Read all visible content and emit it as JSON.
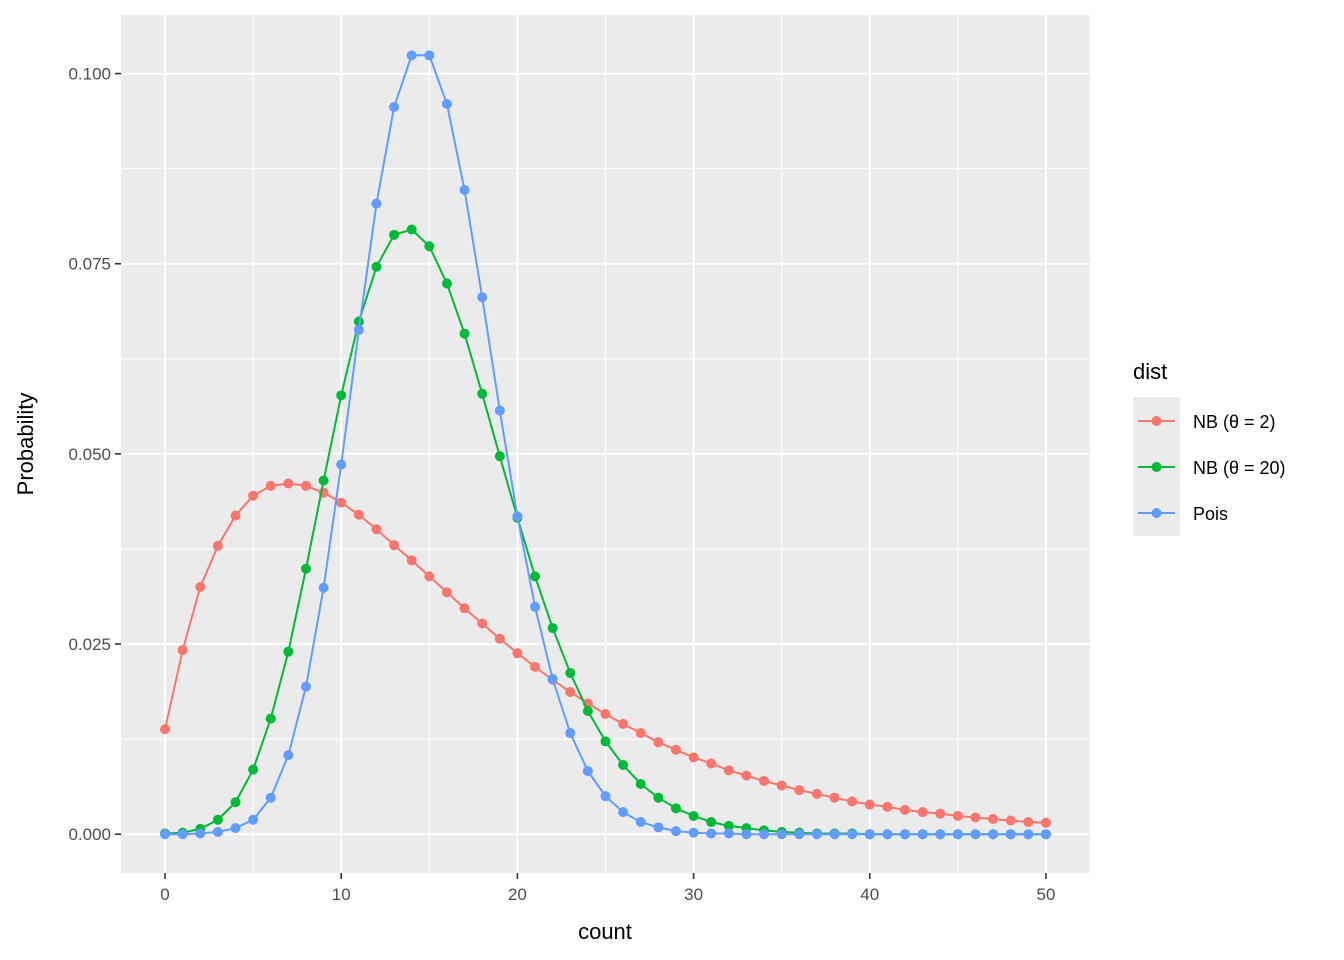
{
  "chart_data": {
    "type": "line",
    "xlabel": "count",
    "ylabel": "Probability",
    "xlim": [
      -2.5,
      52.5
    ],
    "ylim": [
      -0.0051,
      0.1077
    ],
    "x_ticks": [
      0,
      10,
      20,
      30,
      40,
      50
    ],
    "x_tick_labels": [
      "0",
      "10",
      "20",
      "30",
      "40",
      "50"
    ],
    "y_ticks": [
      0,
      0.025,
      0.05,
      0.075,
      0.1
    ],
    "y_tick_labels": [
      "0.000",
      "0.025",
      "0.050",
      "0.075",
      "0.100"
    ],
    "grid": true,
    "background_color": "#ebebeb",
    "grid_color": "#ffffff",
    "legend": {
      "title": "dist",
      "placement": "right",
      "entries": [
        "NB (θ = 2)",
        "NB (θ = 20)",
        "Pois"
      ]
    },
    "x": [
      0,
      1,
      2,
      3,
      4,
      5,
      6,
      7,
      8,
      9,
      10,
      11,
      12,
      13,
      14,
      15,
      16,
      17,
      18,
      19,
      20,
      21,
      22,
      23,
      24,
      25,
      26,
      27,
      28,
      29,
      30,
      31,
      32,
      33,
      34,
      35,
      36,
      37,
      38,
      39,
      40,
      41,
      42,
      43,
      44,
      45,
      46,
      47,
      48,
      49,
      50
    ],
    "series": [
      {
        "name": "NB (θ = 2)",
        "color": "#f8766d",
        "values": [
          0.0138,
          0.0242,
          0.0325,
          0.0379,
          0.0419,
          0.0445,
          0.0458,
          0.0461,
          0.0458,
          0.0449,
          0.0436,
          0.042,
          0.0401,
          0.038,
          0.036,
          0.0339,
          0.0318,
          0.0297,
          0.0277,
          0.0257,
          0.0238,
          0.022,
          0.0203,
          0.0187,
          0.0172,
          0.0158,
          0.0145,
          0.0133,
          0.0121,
          0.0111,
          0.0101,
          0.0093,
          0.0084,
          0.0077,
          0.007,
          0.0064,
          0.0058,
          0.0053,
          0.0048,
          0.0043,
          0.0039,
          0.0036,
          0.0032,
          0.0029,
          0.0027,
          0.0024,
          0.0022,
          0.002,
          0.0018,
          0.0016,
          0.0015
        ]
      },
      {
        "name": "NB (θ = 20)",
        "color": "#00ba38",
        "values": [
          0.0001,
          0.0002,
          0.0007,
          0.0019,
          0.0042,
          0.0085,
          0.0152,
          0.024,
          0.0349,
          0.0465,
          0.0577,
          0.0674,
          0.0746,
          0.0788,
          0.0795,
          0.0773,
          0.0724,
          0.0658,
          0.0579,
          0.0497,
          0.0416,
          0.0339,
          0.0271,
          0.0212,
          0.0162,
          0.0122,
          0.0091,
          0.0066,
          0.0048,
          0.0034,
          0.0024,
          0.0016,
          0.0011,
          0.0008,
          0.0005,
          0.0003,
          0.0002,
          0.0001,
          0.0001,
          0.0001,
          0.0,
          0.0,
          0.0,
          0.0,
          0.0,
          0.0,
          0.0,
          0.0,
          0.0,
          0.0,
          0.0
        ]
      },
      {
        "name": "Pois",
        "color": "#619cff",
        "values": [
          0.0,
          0.0,
          0.0001,
          0.0003,
          0.0008,
          0.0019,
          0.0048,
          0.0104,
          0.0194,
          0.0324,
          0.0486,
          0.0663,
          0.0829,
          0.0956,
          0.1024,
          0.1024,
          0.096,
          0.0847,
          0.0706,
          0.0557,
          0.0418,
          0.0299,
          0.0204,
          0.0133,
          0.0083,
          0.005,
          0.0029,
          0.0016,
          0.0009,
          0.0004,
          0.0002,
          0.0001,
          0.0001,
          0.0,
          0.0,
          0.0,
          0.0,
          0.0,
          0.0,
          0.0,
          0.0,
          0.0,
          0.0,
          0.0,
          0.0,
          0.0,
          0.0,
          0.0,
          0.0,
          0.0,
          0.0
        ]
      }
    ]
  }
}
